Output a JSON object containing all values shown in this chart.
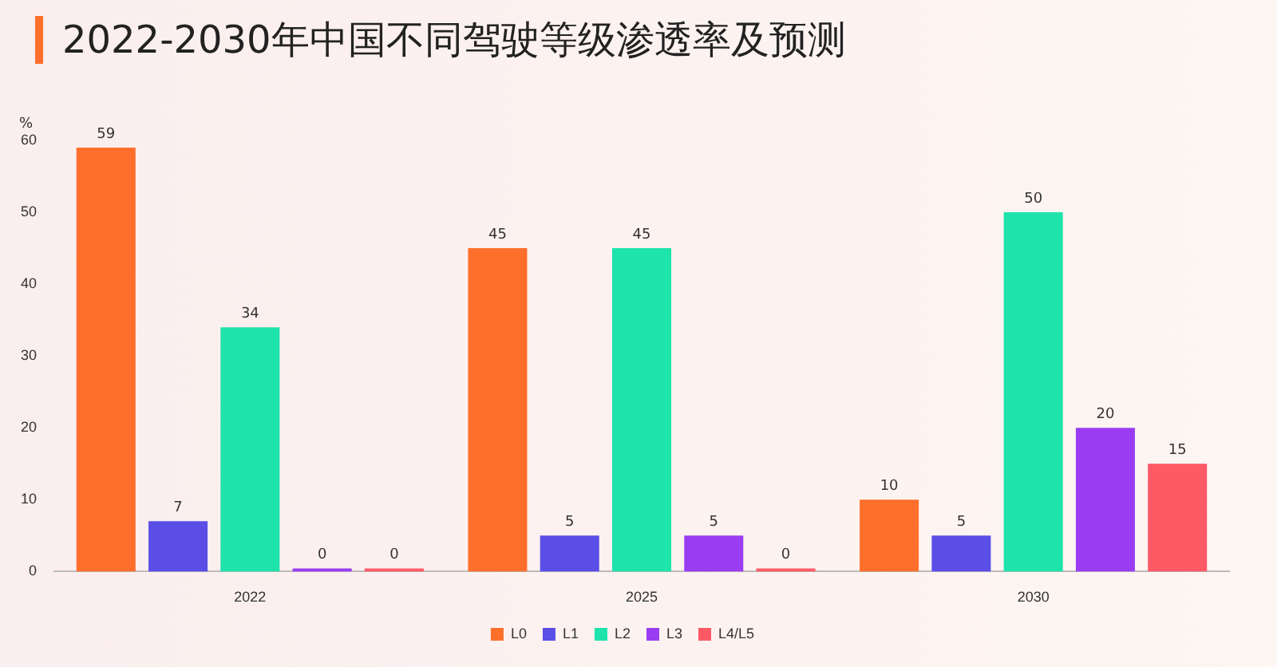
{
  "chart_data": {
    "type": "bar",
    "title": "2022-2030年中国不同驾驶等级渗透率及预测",
    "ylabel": "%",
    "categories": [
      "2022",
      "2025",
      "2030"
    ],
    "series": [
      {
        "name": "L0",
        "color": "#fe6f2c",
        "values": [
          59,
          45,
          10
        ]
      },
      {
        "name": "L1",
        "color": "#5a4ee6",
        "values": [
          7,
          5,
          5
        ]
      },
      {
        "name": "L2",
        "color": "#1ee3ab",
        "values": [
          34,
          45,
          50
        ]
      },
      {
        "name": "L3",
        "color": "#9a3df2",
        "values": [
          0,
          5,
          20
        ]
      },
      {
        "name": "L4/L5",
        "color": "#fd5a66",
        "values": [
          0,
          0,
          15
        ]
      }
    ],
    "ylim": [
      0,
      60
    ],
    "yticks": [
      0,
      10,
      20,
      30,
      40,
      50,
      60
    ],
    "grid": false,
    "legend": "bottom",
    "data_labels": true
  }
}
